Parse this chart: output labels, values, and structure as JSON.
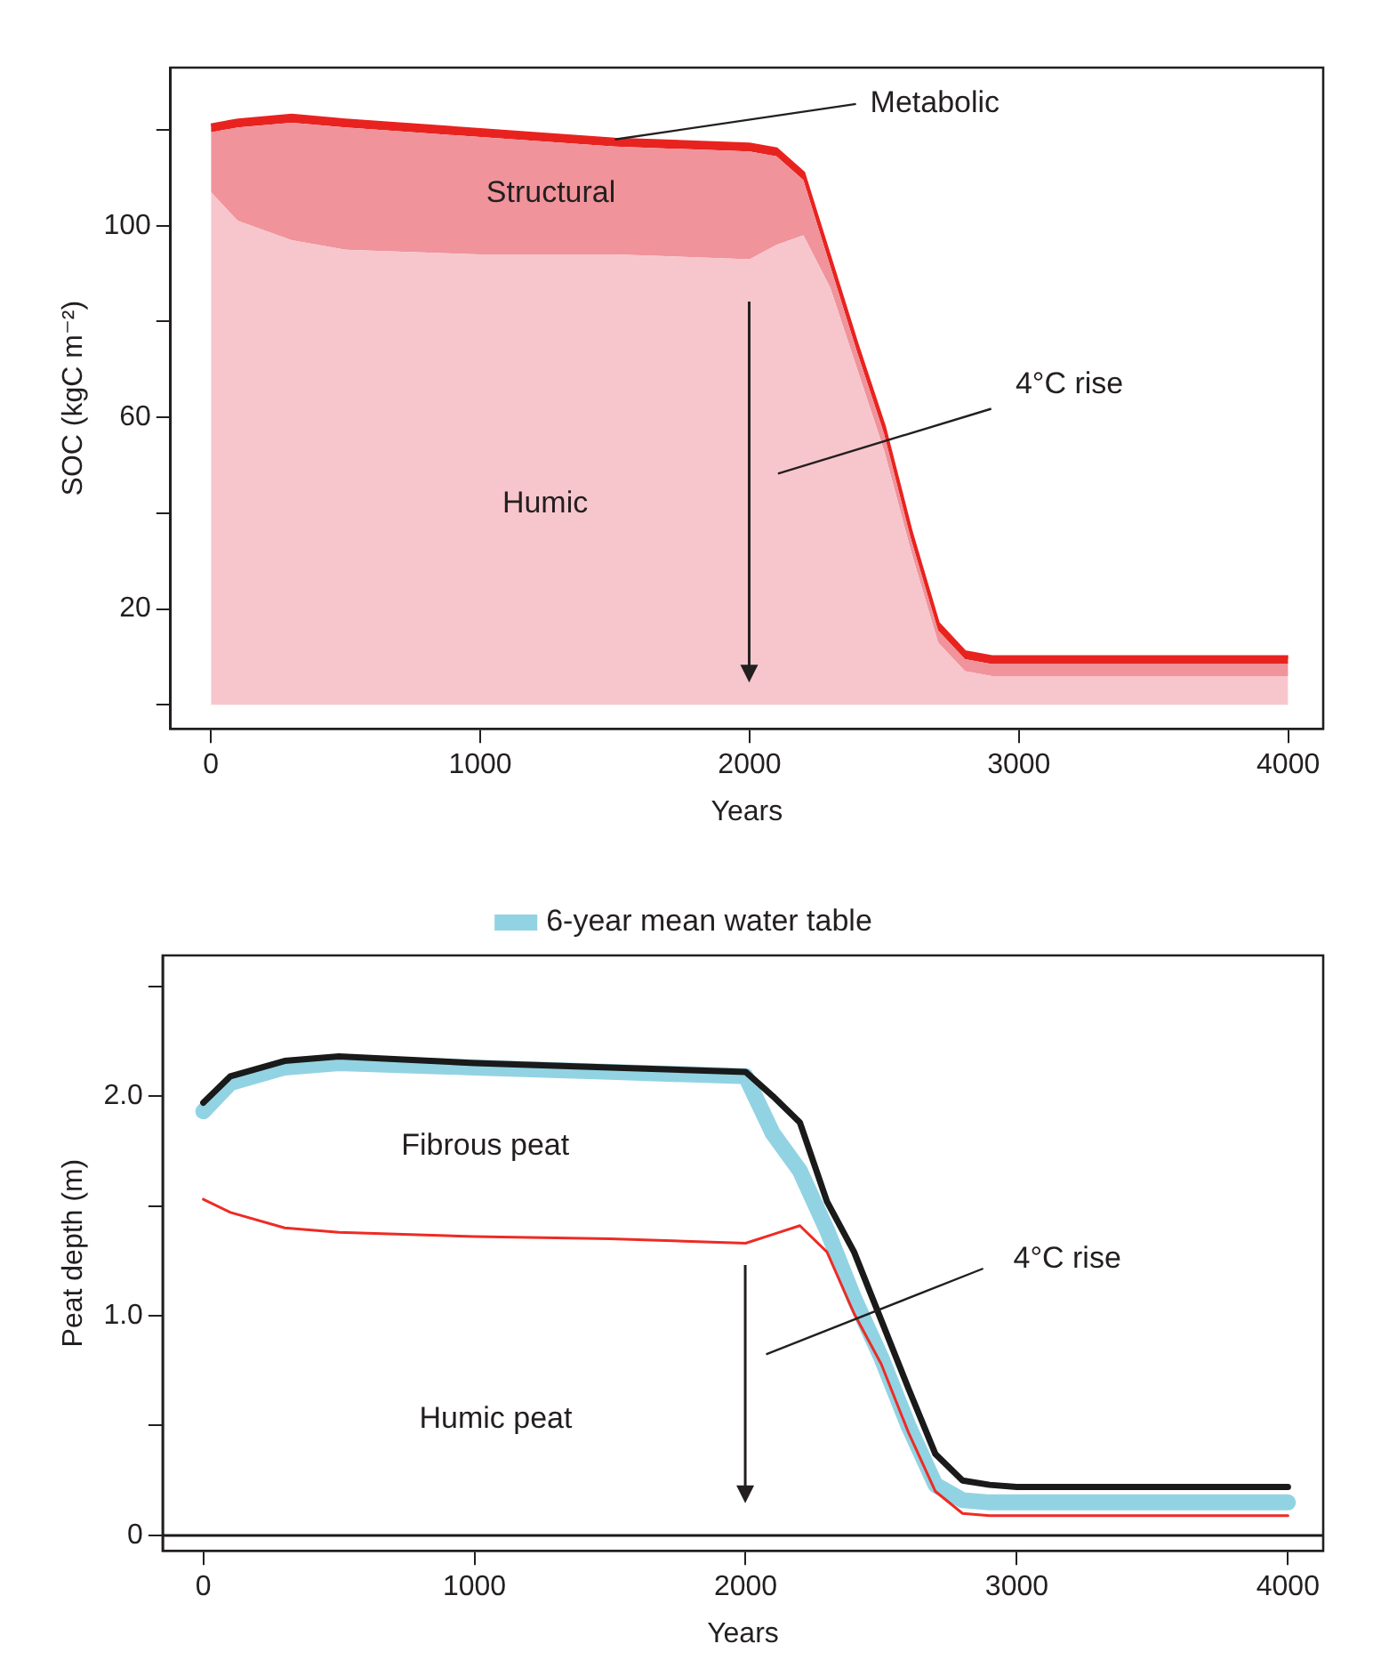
{
  "chart_data": [
    {
      "type": "area",
      "stacked": true,
      "xlabel": "Years",
      "ylabel": "SOC (kgC m⁻²)",
      "x": [
        0,
        100,
        300,
        500,
        1000,
        1500,
        2000,
        2100,
        2200,
        2300,
        2400,
        2500,
        2600,
        2700,
        2800,
        2900,
        3000,
        4000
      ],
      "series": [
        {
          "name": "Humic",
          "color": "#f7c6cc",
          "values": [
            107,
            101,
            97,
            95,
            94,
            94,
            93,
            96,
            98,
            87,
            70,
            53,
            32,
            13,
            7,
            6,
            6,
            6
          ]
        },
        {
          "name": "Structural",
          "color": "#f0939b",
          "values": [
            12.5,
            19.5,
            24.5,
            25.5,
            24.5,
            22.5,
            22.5,
            18.5,
            11.5,
            4.5,
            3.5,
            3.5,
            2.5,
            2.5,
            2.5,
            2.5,
            2.5,
            2.5
          ]
        },
        {
          "name": "Metabolic",
          "color": "#e8231f",
          "values": [
            1.5,
            1.5,
            1.5,
            1.5,
            1.5,
            1.5,
            1.5,
            1.5,
            1.5,
            1.5,
            1.5,
            1.5,
            1.5,
            1.5,
            1.5,
            1.5,
            1.5,
            1.5
          ]
        }
      ],
      "xlim": [
        -150,
        4130
      ],
      "xticks": [
        0,
        1000,
        2000,
        3000,
        4000
      ],
      "ylim": [
        -5,
        133
      ],
      "yticks": [
        {
          "value": 0,
          "label": null
        },
        20,
        {
          "value": 40,
          "label": null
        },
        60,
        {
          "value": 80,
          "label": null
        },
        100,
        {
          "value": 120,
          "label": null
        }
      ],
      "annotations": [
        "4°C rise"
      ]
    },
    {
      "type": "line",
      "xlabel": "Years",
      "ylabel": "Peat depth (m)",
      "legend": "top",
      "x": [
        0,
        100,
        300,
        500,
        1000,
        1500,
        2000,
        2100,
        2200,
        2300,
        2400,
        2500,
        2600,
        2700,
        2800,
        2900,
        3000,
        4000
      ],
      "series": [
        {
          "name": "6-year mean water table",
          "color": "#92d3e3",
          "values": [
            1.93,
            2.06,
            2.13,
            2.15,
            2.13,
            2.11,
            2.09,
            1.83,
            1.66,
            1.39,
            1.08,
            0.81,
            0.5,
            0.23,
            0.16,
            0.15,
            0.15,
            0.15
          ]
        },
        {
          "color": "#1a1a1a",
          "values": [
            1.97,
            2.09,
            2.16,
            2.18,
            2.15,
            2.13,
            2.11,
            2.0,
            1.88,
            1.52,
            1.29,
            0.98,
            0.67,
            0.37,
            0.25,
            0.23,
            0.22,
            0.22
          ]
        },
        {
          "color": "#ee2b24",
          "values": [
            1.53,
            1.47,
            1.4,
            1.38,
            1.36,
            1.35,
            1.33,
            1.37,
            1.41,
            1.29,
            1.01,
            0.78,
            0.47,
            0.2,
            0.1,
            0.09,
            0.09,
            0.09
          ]
        }
      ],
      "xlim": [
        -150,
        4130
      ],
      "xticks": [
        0,
        1000,
        2000,
        3000,
        4000
      ],
      "ylim": [
        -0.07,
        2.64
      ],
      "yticks": [
        0,
        {
          "value": 0.5,
          "label": null
        },
        {
          "value": 1,
          "label": "1.0"
        },
        {
          "value": 1.5,
          "label": null
        },
        {
          "value": 2,
          "label": "2.0"
        },
        {
          "value": 2.5,
          "label": null
        }
      ],
      "ref_lines": [
        {
          "axis": "y",
          "value": 0,
          "color": "#1a1a1a"
        }
      ],
      "annotations": [
        "Fibrous peat",
        "Humic peat",
        "4°C rise"
      ]
    }
  ]
}
